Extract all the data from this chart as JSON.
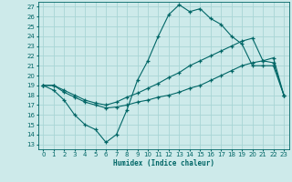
{
  "xlabel": "Humidex (Indice chaleur)",
  "bg_color": "#cdeaea",
  "grid_color": "#a8d5d5",
  "line_color": "#006666",
  "xlim": [
    -0.5,
    23.5
  ],
  "ylim": [
    12.5,
    27.5
  ],
  "yticks": [
    13,
    14,
    15,
    16,
    17,
    18,
    19,
    20,
    21,
    22,
    23,
    24,
    25,
    26,
    27
  ],
  "xticks": [
    0,
    1,
    2,
    3,
    4,
    5,
    6,
    7,
    8,
    9,
    10,
    11,
    12,
    13,
    14,
    15,
    16,
    17,
    18,
    19,
    20,
    21,
    22,
    23
  ],
  "line1_x": [
    0,
    1,
    2,
    3,
    4,
    5,
    6,
    7,
    8,
    9,
    10,
    11,
    12,
    13,
    14,
    15,
    16,
    17,
    18,
    19,
    20,
    21,
    22,
    23
  ],
  "line1_y": [
    19.0,
    18.5,
    17.5,
    16.0,
    15.0,
    14.5,
    13.2,
    14.0,
    16.5,
    19.5,
    21.5,
    24.0,
    26.2,
    27.2,
    26.5,
    26.8,
    25.8,
    25.2,
    24.0,
    23.2,
    21.0,
    21.0,
    21.0,
    18.0
  ],
  "line2_x": [
    0,
    1,
    2,
    3,
    4,
    5,
    6,
    7,
    8,
    9,
    10,
    11,
    12,
    13,
    14,
    15,
    16,
    17,
    18,
    19,
    20,
    21,
    22,
    23
  ],
  "line2_y": [
    19.0,
    19.0,
    18.5,
    18.0,
    17.5,
    17.2,
    17.0,
    17.3,
    17.8,
    18.2,
    18.7,
    19.2,
    19.8,
    20.3,
    21.0,
    21.5,
    22.0,
    22.5,
    23.0,
    23.5,
    23.8,
    21.5,
    21.3,
    18.0
  ],
  "line3_x": [
    0,
    1,
    2,
    3,
    4,
    5,
    6,
    7,
    8,
    9,
    10,
    11,
    12,
    13,
    14,
    15,
    16,
    17,
    18,
    19,
    20,
    21,
    22,
    23
  ],
  "line3_y": [
    19.0,
    19.0,
    18.3,
    17.8,
    17.3,
    17.0,
    16.7,
    16.8,
    17.0,
    17.3,
    17.5,
    17.8,
    18.0,
    18.3,
    18.7,
    19.0,
    19.5,
    20.0,
    20.5,
    21.0,
    21.3,
    21.5,
    21.8,
    18.0
  ]
}
